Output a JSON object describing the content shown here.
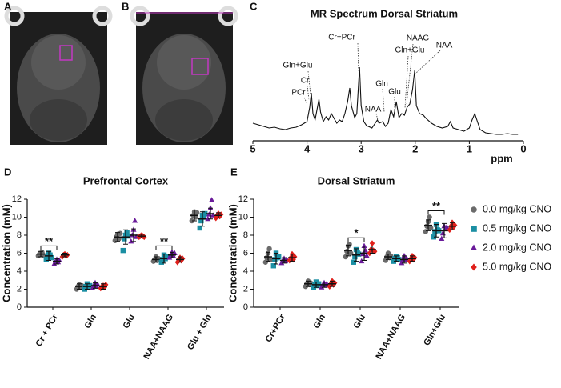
{
  "panel_labels": [
    "A",
    "B",
    "C",
    "D",
    "E"
  ],
  "chart_data": [
    {
      "type": "line",
      "title": "MR Spectrum Dorsal Striatum",
      "x_label": "ppm",
      "color": "#111111",
      "xlim": [
        5,
        0
      ],
      "xticks": [
        5,
        4,
        3,
        2,
        1,
        0
      ],
      "ylim": [
        0,
        100
      ],
      "annotations": [
        "Cr+PCr",
        "NAAG",
        "NAA",
        "Gln+Glu",
        "Gln+Glu",
        "Cr",
        "PCr",
        "Gln",
        "Glu",
        "NAA"
      ],
      "x": [
        5.0,
        4.9,
        4.8,
        4.7,
        4.6,
        4.5,
        4.4,
        4.3,
        4.2,
        4.1,
        4.0,
        3.95,
        3.92,
        3.89,
        3.85,
        3.78,
        3.75,
        3.7,
        3.65,
        3.6,
        3.55,
        3.5,
        3.45,
        3.4,
        3.35,
        3.3,
        3.25,
        3.21,
        3.18,
        3.12,
        3.08,
        3.03,
        3.0,
        2.95,
        2.9,
        2.8,
        2.7,
        2.67,
        2.6,
        2.55,
        2.5,
        2.45,
        2.4,
        2.35,
        2.3,
        2.25,
        2.2,
        2.15,
        2.1,
        2.05,
        2.01,
        1.98,
        1.92,
        1.85,
        1.8,
        1.7,
        1.6,
        1.5,
        1.4,
        1.35,
        1.3,
        1.2,
        1.1,
        1.0,
        0.95,
        0.9,
        0.85,
        0.8,
        0.7,
        0.6,
        0.5,
        0.4,
        0.3,
        0.2,
        0.1
      ],
      "values": [
        18,
        16,
        14,
        12,
        13,
        11,
        10,
        12,
        13,
        16,
        20,
        38,
        56,
        30,
        22,
        48,
        32,
        20,
        26,
        22,
        30,
        24,
        18,
        22,
        20,
        30,
        45,
        62,
        40,
        25,
        30,
        88,
        40,
        20,
        15,
        12,
        22,
        18,
        20,
        14,
        18,
        35,
        26,
        45,
        25,
        30,
        28,
        38,
        42,
        60,
        84,
        40,
        30,
        28,
        24,
        18,
        14,
        12,
        14,
        20,
        12,
        10,
        8,
        12,
        22,
        30,
        20,
        10,
        6,
        5,
        4,
        4,
        5,
        4,
        4
      ]
    },
    {
      "type": "dot",
      "title": "Prefrontal  Cortex",
      "y_label": "Concentration (mM)",
      "categories": [
        "Cr + PCr",
        "Gln",
        "Glu",
        "NAA+NAAG",
        "Glu + Gln"
      ],
      "ylim": [
        0,
        12
      ],
      "yticks": [
        0,
        2,
        4,
        6,
        8,
        10,
        12
      ],
      "series": [
        {
          "color": "#6b6b6b",
          "marker": "circle",
          "values": [
            5.9,
            2.3,
            7.8,
            5.3,
            10.2
          ],
          "errors": [
            0.3,
            0.3,
            0.5,
            0.3,
            0.6
          ],
          "points": [
            [
              5.7,
              5.9,
              6.0,
              6.1,
              5.8
            ],
            [
              2.0,
              2.3,
              2.5,
              2.2,
              2.4
            ],
            [
              7.4,
              7.8,
              8.1,
              7.6,
              8.2
            ],
            [
              5.1,
              5.3,
              5.6,
              5.2,
              5.4
            ],
            [
              9.6,
              10.2,
              10.6,
              10.0,
              10.5
            ]
          ]
        },
        {
          "color": "#1b8fa3",
          "marker": "square",
          "values": [
            5.7,
            2.3,
            7.8,
            5.4,
            9.8
          ],
          "errors": [
            0.5,
            0.3,
            0.8,
            0.5,
            0.8
          ],
          "points": [
            [
              5.3,
              5.6,
              6.0,
              5.8,
              5.5
            ],
            [
              2.0,
              2.3,
              2.6,
              2.2,
              2.4
            ],
            [
              6.3,
              7.6,
              8.0,
              8.3,
              7.9
            ],
            [
              5.0,
              5.3,
              5.8,
              5.4,
              5.6
            ],
            [
              8.8,
              9.6,
              10.2,
              10.0,
              10.4
            ]
          ]
        },
        {
          "color": "#6a1b9a",
          "marker": "triangle",
          "values": [
            5.1,
            2.4,
            8.0,
            5.8,
            10.4
          ],
          "errors": [
            0.3,
            0.3,
            0.7,
            0.3,
            0.6
          ],
          "points": [
            [
              4.8,
              5.1,
              5.3,
              5.0,
              5.2
            ],
            [
              2.1,
              2.4,
              2.7,
              2.3,
              2.5
            ],
            [
              7.3,
              8.0,
              8.6,
              9.6,
              7.8
            ],
            [
              5.5,
              5.8,
              6.1,
              5.7,
              6.0
            ],
            [
              9.8,
              10.3,
              11.0,
              11.9,
              10.2
            ]
          ]
        },
        {
          "color": "#e0201b",
          "marker": "diamond",
          "values": [
            5.8,
            2.3,
            7.9,
            5.3,
            10.2
          ],
          "errors": [
            0.2,
            0.3,
            0.2,
            0.3,
            0.3
          ],
          "points": [
            [
              5.6,
              5.8,
              5.9,
              5.7,
              5.8
            ],
            [
              2.1,
              2.3,
              2.4,
              2.2,
              2.5
            ],
            [
              7.8,
              7.9,
              8.0,
              7.9,
              7.8
            ],
            [
              5.0,
              5.3,
              5.5,
              5.2,
              5.4
            ],
            [
              9.9,
              10.2,
              10.4,
              10.1,
              10.3
            ]
          ]
        }
      ],
      "significance": [
        {
          "label": "**",
          "category": "Cr + PCr"
        },
        {
          "label": "**",
          "category": "NAA+NAAG"
        }
      ]
    },
    {
      "type": "dot",
      "title": "Dorsal Striatum",
      "y_label": "Concentration (mM)",
      "categories": [
        "Cr+PCr",
        "Gln",
        "Glu",
        "NAA+NAAG",
        "Gln+Glu"
      ],
      "ylim": [
        0,
        12
      ],
      "yticks": [
        0,
        2,
        4,
        6,
        8,
        10,
        12
      ],
      "legend": "right",
      "series": [
        {
          "name": "0.0 mg/kg CNO",
          "color": "#6b6b6b",
          "marker": "circle",
          "values": [
            5.6,
            2.6,
            6.3,
            5.6,
            9.1
          ],
          "errors": [
            0.5,
            0.3,
            0.6,
            0.3,
            0.6
          ],
          "points": [
            [
              5.0,
              5.5,
              6.0,
              6.5,
              5.3
            ],
            [
              2.3,
              2.6,
              2.9,
              2.5,
              2.7
            ],
            [
              5.6,
              6.2,
              6.8,
              7.0,
              6.0
            ],
            [
              5.2,
              5.6,
              6.0,
              5.5,
              5.7
            ],
            [
              8.4,
              9.0,
              9.5,
              10.0,
              8.8
            ]
          ]
        },
        {
          "name": "0.5 mg/kg CNO",
          "color": "#1b8fa3",
          "marker": "square",
          "values": [
            5.4,
            2.5,
            5.8,
            5.4,
            8.5
          ],
          "errors": [
            0.6,
            0.3,
            0.7,
            0.3,
            0.7
          ],
          "points": [
            [
              4.6,
              5.3,
              6.0,
              5.5,
              5.6
            ],
            [
              2.2,
              2.5,
              2.8,
              2.4,
              2.6
            ],
            [
              5.0,
              5.6,
              6.4,
              6.1,
              5.9
            ],
            [
              5.1,
              5.4,
              5.6,
              5.5,
              5.3
            ],
            [
              7.8,
              8.4,
              9.2,
              8.6,
              8.5
            ]
          ]
        },
        {
          "name": "2.0 mg/kg CNO",
          "color": "#6a1b9a",
          "marker": "triangle",
          "values": [
            5.2,
            2.5,
            6.0,
            5.3,
            8.5
          ],
          "errors": [
            0.3,
            0.3,
            0.8,
            0.4,
            0.8
          ],
          "points": [
            [
              4.9,
              5.2,
              5.4,
              5.1,
              5.3
            ],
            [
              2.2,
              2.5,
              2.7,
              2.4,
              2.6
            ],
            [
              5.1,
              5.9,
              6.8,
              6.3,
              5.7
            ],
            [
              4.9,
              5.3,
              5.7,
              5.2,
              5.4
            ],
            [
              7.6,
              8.2,
              9.0,
              8.7,
              8.9
            ]
          ]
        },
        {
          "name": "5.0 mg/kg CNO",
          "color": "#e0201b",
          "marker": "diamond",
          "values": [
            5.5,
            2.6,
            6.4,
            5.4,
            9.0
          ],
          "errors": [
            0.4,
            0.3,
            0.4,
            0.3,
            0.4
          ],
          "points": [
            [
              5.2,
              5.5,
              5.9,
              5.3,
              5.6
            ],
            [
              2.3,
              2.6,
              2.9,
              2.5,
              2.7
            ],
            [
              6.0,
              6.4,
              7.1,
              6.3,
              6.2
            ],
            [
              5.1,
              5.4,
              5.7,
              5.3,
              5.5
            ],
            [
              8.6,
              9.0,
              9.4,
              8.9,
              9.1
            ]
          ]
        }
      ],
      "significance": [
        {
          "label": "*",
          "category": "Glu"
        },
        {
          "label": "**",
          "category": "Gln+Glu"
        }
      ]
    }
  ]
}
